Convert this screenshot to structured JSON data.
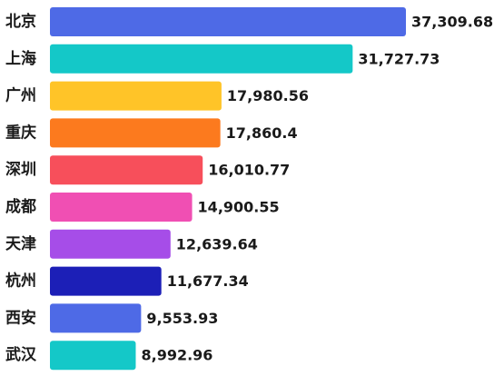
{
  "chart_data": {
    "type": "bar",
    "orientation": "horizontal",
    "categories": [
      "北京",
      "上海",
      "广州",
      "重庆",
      "深圳",
      "成都",
      "天津",
      "杭州",
      "西安",
      "武汉"
    ],
    "values": [
      37309.68,
      31727.73,
      17980.56,
      17860.4,
      16010.77,
      14900.55,
      12639.64,
      11677.34,
      9553.93,
      8992.96
    ],
    "value_labels": [
      "37,309.68",
      "31,727.73",
      "17,980.56",
      "17,860.4",
      "16,010.77",
      "14,900.55",
      "12,639.64",
      "11,677.34",
      "9,553.93",
      "8,992.96"
    ],
    "colors": [
      "#4e6ae6",
      "#14c8c8",
      "#ffc428",
      "#fc7a1e",
      "#f74f5b",
      "#f04fb3",
      "#a64de8",
      "#1c1fb7",
      "#4e6ae6",
      "#14c8c8"
    ],
    "title": "",
    "xlabel": "",
    "ylabel": "",
    "xlim": [
      0,
      37309.68
    ],
    "grid": false,
    "legend": "none"
  }
}
